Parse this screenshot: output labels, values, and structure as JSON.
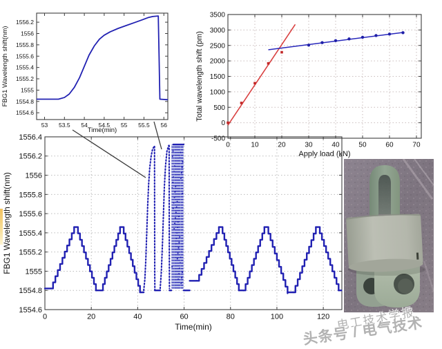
{
  "page": {
    "background": "#ffffff"
  },
  "watermark": {
    "line1": "电工技术学报",
    "line2": "头条号 / 电气技术",
    "color": "#949494"
  },
  "annotation": {
    "lines": [
      [
        105,
        188,
        211,
        257
      ],
      [
        223,
        176,
        234,
        216
      ]
    ],
    "color": "#3a3a3a"
  },
  "photo": {
    "label": "fbg-load-shackle-photo"
  },
  "chart_data": [
    {
      "id": "chartA",
      "type": "line",
      "title": "",
      "xlabel": "Time(min)",
      "ylabel": "FBG1 Wavelength shift(nm)",
      "xlim": [
        52.8,
        56.1
      ],
      "ylim": [
        1554.48,
        1556.36
      ],
      "xticks": [
        53,
        53.5,
        54,
        54.5,
        55,
        55.5,
        56
      ],
      "yticks": [
        1554.6,
        1554.8,
        1555,
        1555.2,
        1555.4,
        1555.6,
        1555.8,
        1556,
        1556.2
      ],
      "grid": false,
      "grid_color": "#c4c4c4",
      "legend": "none",
      "box": {
        "l": 53,
        "t": 19,
        "r": 243,
        "b": 173
      },
      "tick_font": 8.5,
      "label_font": 9.5,
      "xlabel_dy": 18,
      "ylabel_x": 10,
      "series": [
        {
          "name": "FBG1 single load-unload response",
          "type": "line",
          "color": "#2121b2",
          "width": 1.8,
          "pts": [
            [
              52.8,
              1554.84
            ],
            [
              53.35,
              1554.84
            ],
            [
              53.5,
              1554.87
            ],
            [
              53.62,
              1554.93
            ],
            [
              53.75,
              1555.05
            ],
            [
              53.88,
              1555.22
            ],
            [
              54.0,
              1555.42
            ],
            [
              54.12,
              1555.62
            ],
            [
              54.25,
              1555.78
            ],
            [
              54.38,
              1555.9
            ],
            [
              54.5,
              1555.97
            ],
            [
              54.65,
              1556.03
            ],
            [
              54.85,
              1556.09
            ],
            [
              55.05,
              1556.14
            ],
            [
              55.25,
              1556.19
            ],
            [
              55.45,
              1556.24
            ],
            [
              55.6,
              1556.28
            ],
            [
              55.72,
              1556.3
            ],
            [
              55.86,
              1556.31
            ],
            [
              55.88,
              1555.6
            ],
            [
              55.9,
              1554.84
            ],
            [
              56.1,
              1554.83
            ]
          ]
        }
      ]
    },
    {
      "id": "chartB",
      "type": "scatter",
      "title": "",
      "xlabel": "Apply load (kN)",
      "ylabel": "Total wavelength shift (pm)",
      "xlim": [
        0,
        71.8
      ],
      "ylim": [
        -500,
        3500
      ],
      "xticks": [
        0,
        10,
        20,
        30,
        40,
        50,
        60,
        70
      ],
      "yticks": [
        -500,
        0,
        500,
        1000,
        1500,
        2000,
        2500,
        3000,
        3500
      ],
      "grid": true,
      "grid_color": "#c9bcbc",
      "legend": "none",
      "box": {
        "l": 49,
        "t": 21,
        "r": 329,
        "b": 200
      },
      "tick_font": 10,
      "label_font": 11,
      "xlabel_dy": 26,
      "ylabel_x": 11,
      "series": [
        {
          "name": "loading stage linear fit",
          "type": "line",
          "color": "#d94040",
          "width": 1.6,
          "pts": [
            [
              0,
              -80
            ],
            [
              25,
              3180
            ]
          ]
        },
        {
          "name": "loading stage measurements",
          "type": "points",
          "marker": "square",
          "color": "#c22828",
          "size": 3.6,
          "pts": [
            [
              0,
              0
            ],
            [
              5,
              640
            ],
            [
              10,
              1280
            ],
            [
              15,
              1920
            ],
            [
              20,
              2280
            ]
          ]
        },
        {
          "name": "over-range stage linear fit",
          "type": "line",
          "color": "#2626bb",
          "width": 1.5,
          "pts": [
            [
              15,
              2360
            ],
            [
              65.5,
              2925
            ]
          ]
        },
        {
          "name": "over-range stage measurements",
          "type": "points",
          "marker": "dot",
          "color": "#1f1fa8",
          "size": 2.2,
          "pts": [
            [
              30,
              2510
            ],
            [
              35,
              2590
            ],
            [
              40,
              2655
            ],
            [
              45,
              2710
            ],
            [
              50,
              2765
            ],
            [
              55,
              2820
            ],
            [
              60,
              2868
            ],
            [
              65,
              2912
            ]
          ]
        }
      ]
    },
    {
      "id": "chartC",
      "type": "line",
      "title": "",
      "xlabel": "Time(min)",
      "ylabel": "FBG1 Wavelength shift(nm)",
      "xlim": [
        0,
        128
      ],
      "ylim": [
        1554.6,
        1556.4
      ],
      "xticks": [
        0,
        20,
        40,
        60,
        80,
        100,
        120
      ],
      "yticks": [
        1554.6,
        1554.8,
        1555,
        1555.2,
        1555.4,
        1555.6,
        1555.8,
        1556,
        1556.2,
        1556.4
      ],
      "grid": true,
      "grid_color": "#bbbbbb",
      "legend": "none",
      "box": {
        "l": 65,
        "t": 8,
        "r": 495,
        "b": 258
      },
      "tick_font": 11,
      "label_font": 12,
      "xlabel_dy": 29,
      "ylabel_x": 14,
      "series": [
        {
          "name": "FBG1 cyclic loading response",
          "type": "segments",
          "color": "#2121b2",
          "width": 2.4,
          "segments": [
            {
              "t": "flat",
              "x0": 0,
              "x1": 2.5,
              "y": 1554.82
            },
            {
              "t": "ramp",
              "x0": 2.5,
              "x1": 12.6,
              "y0": 1554.82,
              "y1": 1555.46,
              "n": 10
            },
            {
              "t": "flat",
              "x0": 12.6,
              "x1": 13.4,
              "y": 1555.46
            },
            {
              "t": "ramp",
              "x0": 13.4,
              "x1": 22,
              "y0": 1555.46,
              "y1": 1554.8,
              "n": 10
            },
            {
              "t": "flat",
              "x0": 22,
              "x1": 24.2,
              "y": 1554.8
            },
            {
              "t": "ramp",
              "x0": 24.2,
              "x1": 32.4,
              "y0": 1554.8,
              "y1": 1555.46,
              "n": 10
            },
            {
              "t": "flat",
              "x0": 32.4,
              "x1": 33.2,
              "y": 1555.46
            },
            {
              "t": "ramp",
              "x0": 33.2,
              "x1": 41,
              "y0": 1555.46,
              "y1": 1554.78,
              "n": 10
            },
            {
              "t": "flat",
              "x0": 41,
              "x1": 42.6,
              "y": 1554.78
            },
            {
              "t": "curve",
              "style": "dotted",
              "pts": [
                [
                  42.6,
                  1554.8
                ],
                [
                  43.1,
                  1554.92
                ],
                [
                  43.5,
                  1555.12
                ],
                [
                  43.9,
                  1555.4
                ],
                [
                  44.3,
                  1555.68
                ],
                [
                  44.7,
                  1555.9
                ],
                [
                  45.2,
                  1556.08
                ],
                [
                  45.8,
                  1556.2
                ],
                [
                  46.4,
                  1556.27
                ],
                [
                  47.1,
                  1556.3
                ]
              ]
            },
            {
              "t": "curve",
              "style": "dotted",
              "pts": [
                [
                  47.25,
                  1556.3
                ],
                [
                  47.3,
                  1555.6
                ],
                [
                  47.35,
                  1555.0
                ],
                [
                  47.4,
                  1554.8
                ]
              ]
            },
            {
              "t": "flat",
              "x0": 47.4,
              "x1": 49.7,
              "y": 1554.8
            },
            {
              "t": "curve",
              "style": "dotted",
              "pts": [
                [
                  49.7,
                  1554.82
                ],
                [
                  50.2,
                  1555.0
                ],
                [
                  50.7,
                  1555.3
                ],
                [
                  51.1,
                  1555.6
                ],
                [
                  51.5,
                  1555.88
                ],
                [
                  52.0,
                  1556.1
                ],
                [
                  52.6,
                  1556.25
                ],
                [
                  53.4,
                  1556.31
                ]
              ]
            },
            {
              "t": "curve",
              "style": "dotted",
              "pts": [
                [
                  53.55,
                  1556.31
                ],
                [
                  53.6,
                  1555.5
                ],
                [
                  53.68,
                  1554.82
                ]
              ]
            },
            {
              "t": "flat",
              "x0": 53.68,
              "x1": 54.5,
              "y": 1554.8
            },
            {
              "t": "cluster",
              "x0": 54.5,
              "x1": 59.8,
              "y0": 1554.82,
              "y1": 1556.32,
              "risers": [
                54.9,
                55.6,
                56.3,
                56.9,
                57.5,
                58.1,
                58.8,
                59.4
              ],
              "fill": "#b7bfe9"
            },
            {
              "t": "flat",
              "x0": 59.8,
              "x1": 62.4,
              "y": 1554.8
            },
            {
              "t": "flat",
              "x0": 62.4,
              "x1": 65.4,
              "y": 1554.9
            },
            {
              "t": "ramp",
              "x0": 65.4,
              "x1": 75,
              "y0": 1554.9,
              "y1": 1555.46,
              "n": 9
            },
            {
              "t": "flat",
              "x0": 75,
              "x1": 75.8,
              "y": 1555.46
            },
            {
              "t": "ramp",
              "x0": 75.8,
              "x1": 83.6,
              "y0": 1555.46,
              "y1": 1554.8,
              "n": 10
            },
            {
              "t": "flat",
              "x0": 83.6,
              "x1": 85.6,
              "y": 1554.8
            },
            {
              "t": "ramp",
              "x0": 85.6,
              "x1": 94.6,
              "y0": 1554.8,
              "y1": 1555.46,
              "n": 10
            },
            {
              "t": "flat",
              "x0": 94.6,
              "x1": 95.4,
              "y": 1555.46
            },
            {
              "t": "ramp",
              "x0": 95.4,
              "x1": 104.6,
              "y0": 1555.46,
              "y1": 1554.77,
              "n": 10
            },
            {
              "t": "flat",
              "x0": 104.6,
              "x1": 107,
              "y": 1554.78
            },
            {
              "t": "ramp",
              "x0": 107,
              "x1": 116.8,
              "y0": 1554.78,
              "y1": 1555.46,
              "n": 10
            },
            {
              "t": "flat",
              "x0": 116.8,
              "x1": 117.6,
              "y": 1555.46
            },
            {
              "t": "ramp",
              "x0": 117.6,
              "x1": 126.6,
              "y0": 1555.46,
              "y1": 1554.8,
              "n": 10
            },
            {
              "t": "flat",
              "x0": 126.6,
              "x1": 127.8,
              "y": 1554.8
            }
          ]
        }
      ]
    }
  ]
}
